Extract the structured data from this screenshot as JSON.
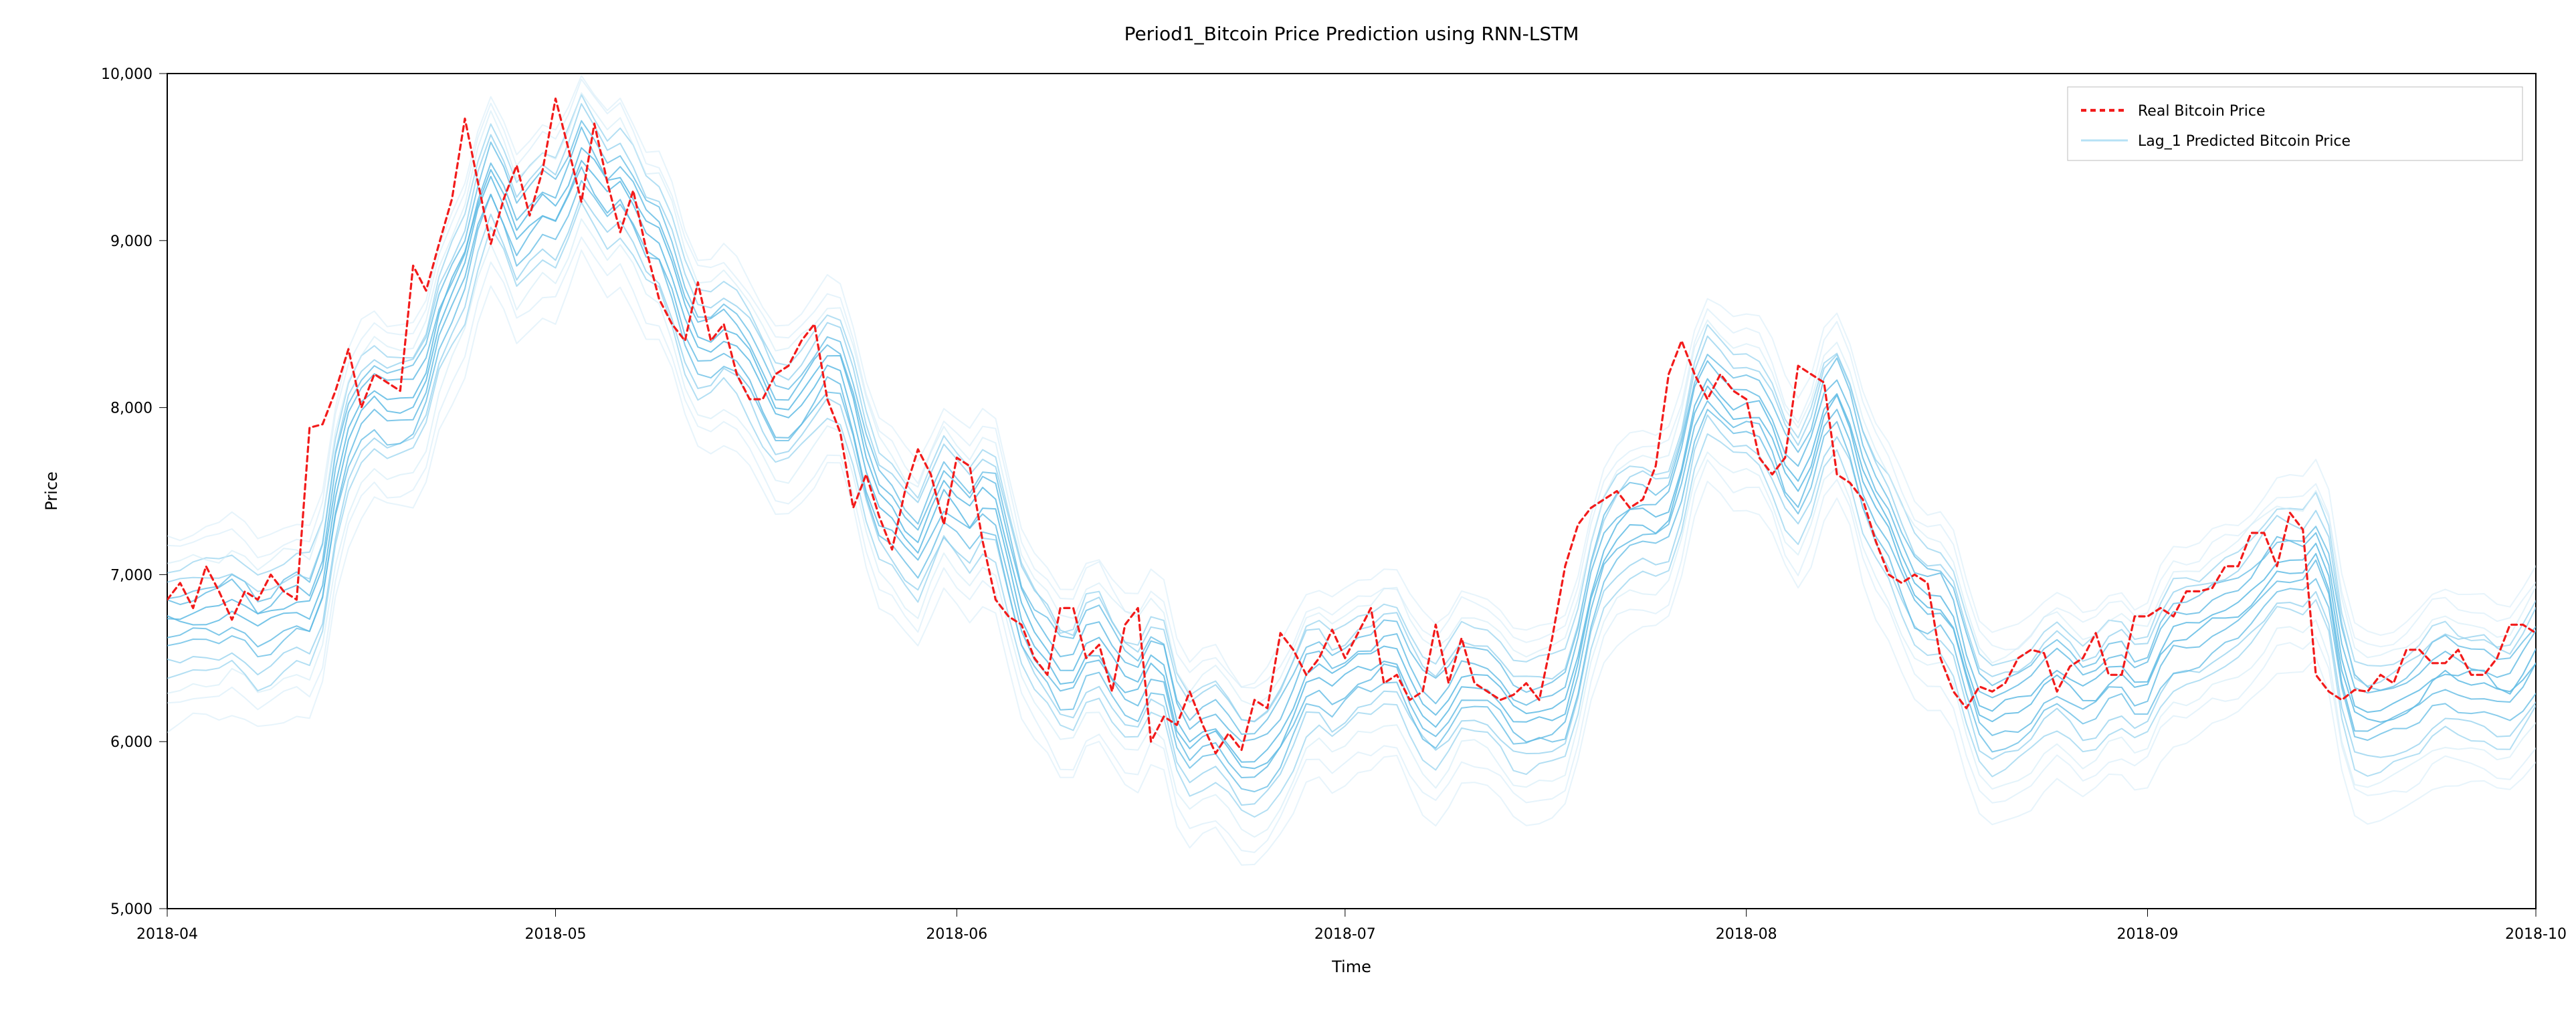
{
  "chart": {
    "type": "line",
    "title": "Period1_Bitcoin Price Prediction using RNN-LSTM",
    "title_fontsize": 28,
    "xlabel": "Time",
    "ylabel": "Price",
    "label_fontsize": 24,
    "tick_fontsize": 22,
    "background_color": "#ffffff",
    "plot_background": "#ffffff",
    "spine_color": "#000000",
    "legend": {
      "position": "upper-right",
      "border_color": "#bdbdbd",
      "background": "#ffffff",
      "items": [
        {
          "label": "Real Bitcoin Price",
          "color": "#f21b1b",
          "dash": "8,6",
          "linewidth": 3.2
        },
        {
          "label": "Lag_1 Predicted Bitcoin Price",
          "color": "#b5e1f5",
          "dash": "",
          "linewidth": 2
        }
      ]
    },
    "x_axis": {
      "type": "date",
      "start": "2018-04-01",
      "end": "2018-10-01",
      "tick_labels": [
        "2018-04",
        "2018-05",
        "2018-06",
        "2018-07",
        "2018-08",
        "2018-09",
        "2018-10"
      ],
      "tick_positions_days": [
        0,
        30,
        61,
        91,
        122,
        153,
        183
      ],
      "range_days": 183
    },
    "y_axis": {
      "min": 5000,
      "max": 10000,
      "ticks": [
        5000,
        6000,
        7000,
        8000,
        9000,
        10000
      ],
      "tick_labels": [
        "5,000",
        "6,000",
        "7,000",
        "8,000",
        "9,000",
        "10,000"
      ]
    },
    "real_series": {
      "color": "#f21b1b",
      "dash": "8,6",
      "linewidth": 3.2,
      "y": [
        6850,
        6950,
        6800,
        7050,
        6900,
        6730,
        6900,
        6850,
        7000,
        6900,
        6850,
        7880,
        7900,
        8100,
        8350,
        8000,
        8200,
        8150,
        8100,
        8850,
        8700,
        8980,
        9250,
        9730,
        9350,
        8980,
        9250,
        9450,
        9150,
        9420,
        9850,
        9550,
        9230,
        9700,
        9350,
        9050,
        9300,
        8950,
        8650,
        8500,
        8400,
        8750,
        8400,
        8500,
        8200,
        8050,
        8050,
        8200,
        8250,
        8400,
        8500,
        8050,
        7850,
        7400,
        7600,
        7350,
        7150,
        7500,
        7750,
        7600,
        7300,
        7700,
        7650,
        7200,
        6850,
        6750,
        6700,
        6500,
        6400,
        6800,
        6800,
        6500,
        6580,
        6300,
        6700,
        6800,
        6000,
        6150,
        6100,
        6300,
        6100,
        5930,
        6050,
        5950,
        6250,
        6200,
        6650,
        6550,
        6400,
        6500,
        6670,
        6500,
        6650,
        6800,
        6350,
        6400,
        6250,
        6300,
        6700,
        6350,
        6620,
        6350,
        6300,
        6250,
        6280,
        6350,
        6250,
        6620,
        7050,
        7300,
        7400,
        7450,
        7500,
        7400,
        7450,
        7650,
        8200,
        8400,
        8200,
        8050,
        8200,
        8100,
        8050,
        7700,
        7600,
        7700,
        8250,
        8200,
        8150,
        7600,
        7550,
        7450,
        7200,
        7000,
        6950,
        7000,
        6950,
        6500,
        6300,
        6200,
        6330,
        6300,
        6350,
        6500,
        6550,
        6530,
        6300,
        6450,
        6500,
        6650,
        6400,
        6400,
        6750,
        6750,
        6800,
        6750,
        6900,
        6900,
        6920,
        7050,
        7050,
        7250,
        7250,
        7050,
        7370,
        7270,
        6400,
        6300,
        6250,
        6310,
        6300,
        6400,
        6350,
        6550,
        6550,
        6470,
        6470,
        6550,
        6400,
        6400,
        6500,
        6700,
        6700,
        6650
      ]
    },
    "predicted_band": {
      "color_light": "#cfeaf7",
      "color_mid": "#88cdec",
      "color_dark": "#5cb9e3",
      "n_lines": 16,
      "linewidth": 2,
      "offsets": [
        -750,
        -640,
        -540,
        -450,
        -370,
        -300,
        -230,
        -160,
        -90,
        -20,
        50,
        110,
        170,
        230,
        300,
        380
      ],
      "wobble_amp": 70,
      "lag_days": 2
    }
  }
}
